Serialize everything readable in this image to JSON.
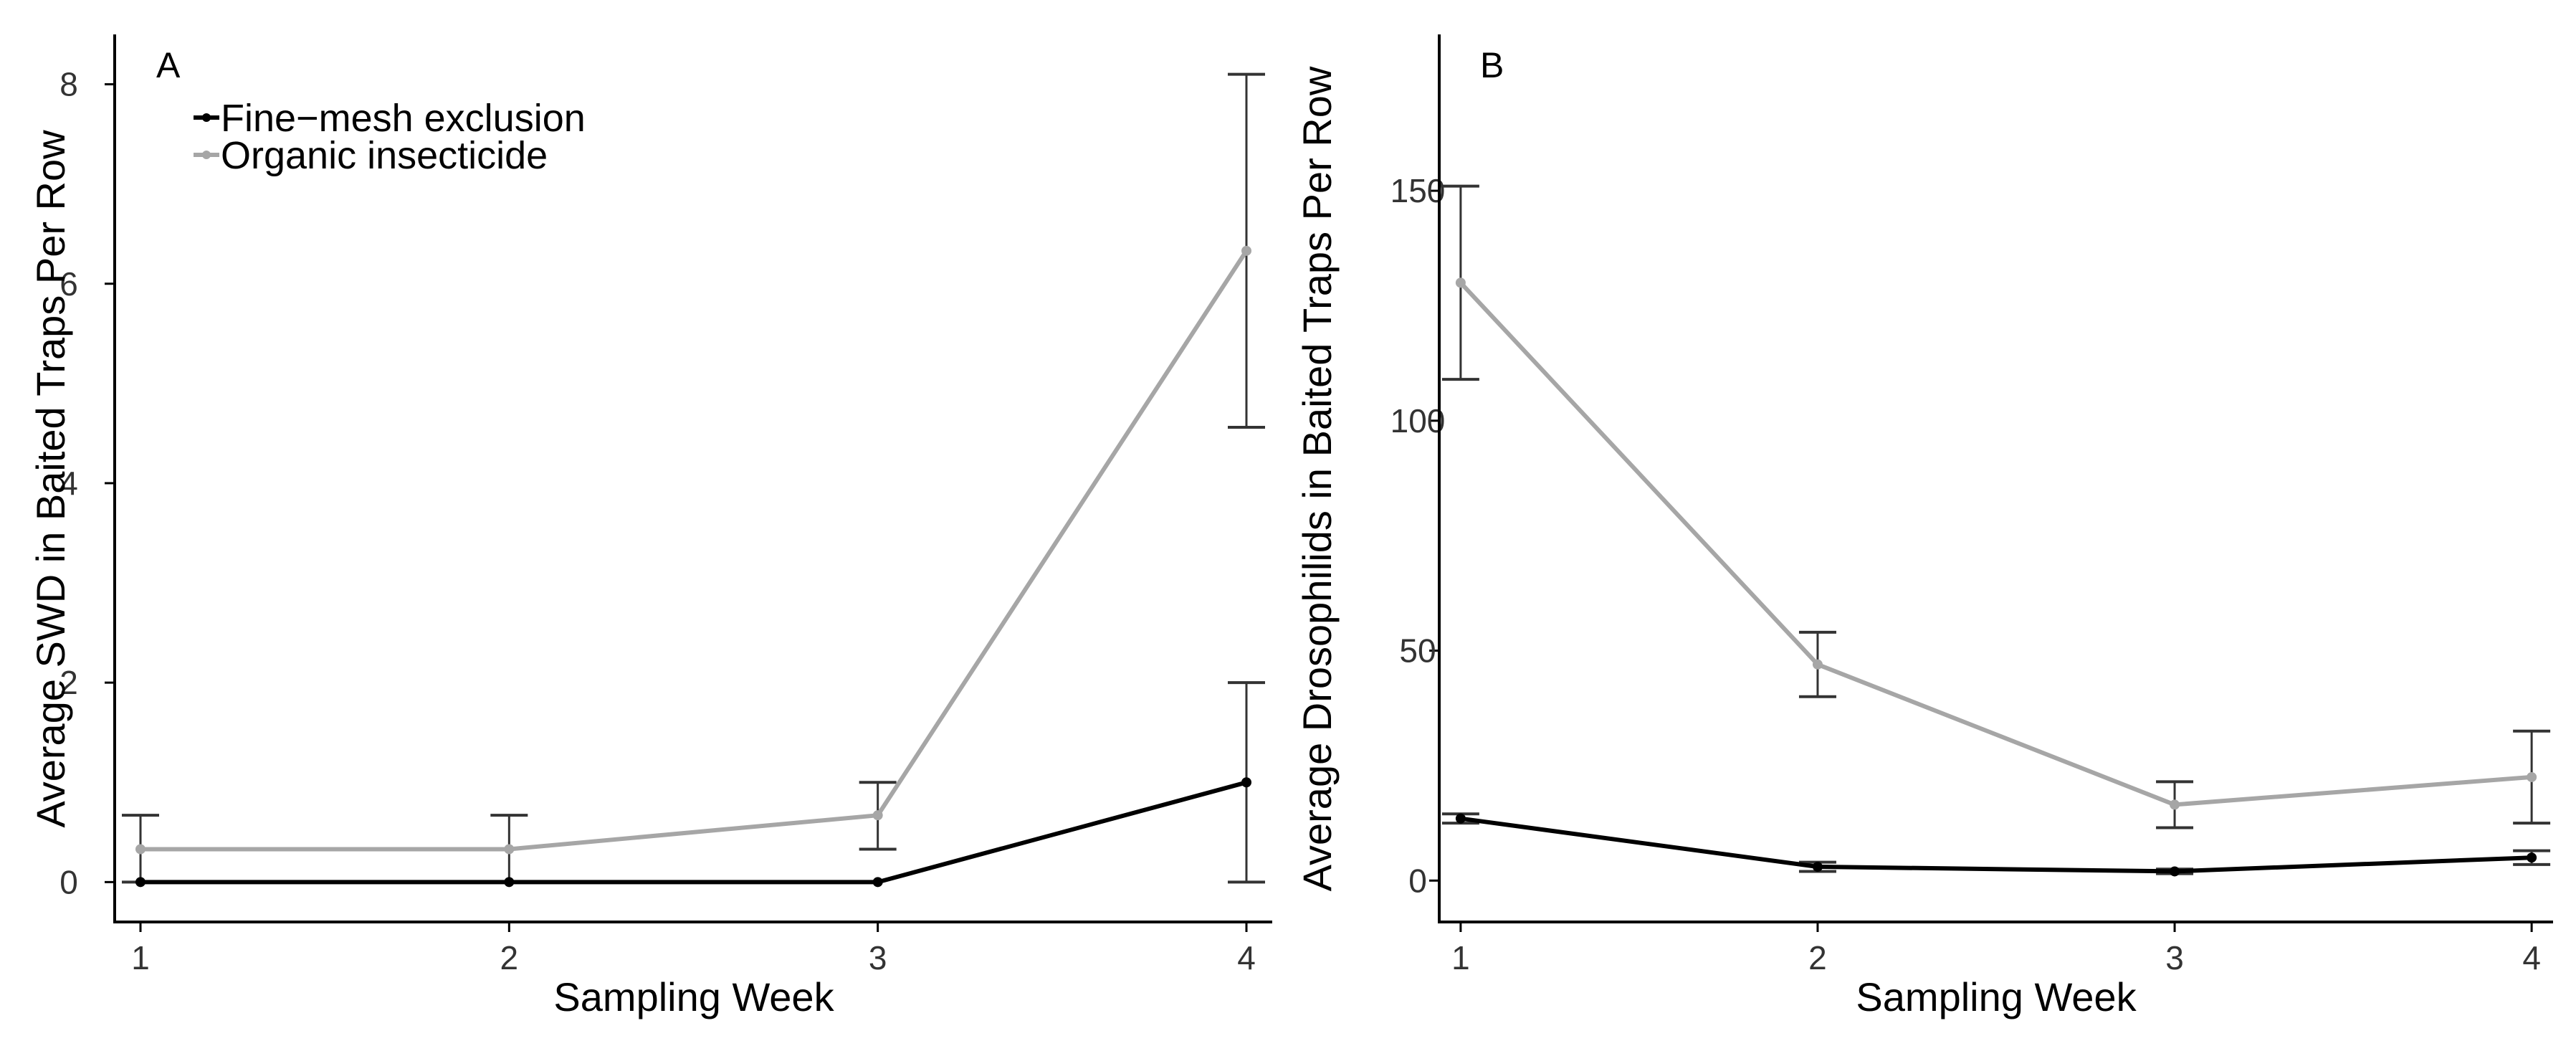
{
  "colors": {
    "fine_mesh": "#000000",
    "organic": "#a6a6a6",
    "error_bar": "#333333"
  },
  "legend": {
    "placement": "top-left",
    "items": [
      {
        "label": "Fine−mesh exclusion",
        "color": "#000000"
      },
      {
        "label": "Organic insecticide",
        "color": "#a6a6a6"
      }
    ]
  },
  "chart_data": [
    {
      "type": "line",
      "panel_label": "A",
      "title": "",
      "xlabel": "Sampling Week",
      "ylabel": "Average SWD in Baited Traps Per Row",
      "x": [
        1,
        2,
        3,
        4
      ],
      "xticks": [
        1,
        2,
        3,
        4
      ],
      "xlim": [
        0.93,
        4.07
      ],
      "yticks": [
        0,
        2,
        4,
        6,
        8
      ],
      "ylim": [
        -0.4,
        8.5
      ],
      "grid": false,
      "legend": "top-left",
      "series": [
        {
          "name": "Fine−mesh exclusion",
          "color": "#000000",
          "values": [
            0,
            0,
            0,
            1.0
          ],
          "err_low": [
            0,
            0,
            0,
            0
          ],
          "err_high": [
            0,
            0,
            0,
            2.0
          ]
        },
        {
          "name": "Organic insecticide",
          "color": "#a6a6a6",
          "values": [
            0.33,
            0.33,
            0.67,
            6.33
          ],
          "err_low": [
            0,
            0,
            0.33,
            4.56
          ],
          "err_high": [
            0.67,
            0.67,
            1.0,
            8.1
          ]
        }
      ]
    },
    {
      "type": "line",
      "panel_label": "B",
      "title": "",
      "xlabel": "Sampling Week",
      "ylabel": "Average Drosophilids in Baited Traps Per Row",
      "x": [
        1,
        2,
        3,
        4
      ],
      "xticks": [
        1,
        2,
        3,
        4
      ],
      "xlim": [
        0.94,
        4.06
      ],
      "yticks": [
        0,
        50,
        100,
        150
      ],
      "ylim": [
        -9,
        184
      ],
      "grid": false,
      "legend": "none",
      "series": [
        {
          "name": "Fine−mesh exclusion",
          "color": "#000000",
          "values": [
            13.5,
            3.0,
            2.0,
            5.0
          ],
          "err_low": [
            12.5,
            2.0,
            1.5,
            3.5
          ],
          "err_high": [
            14.5,
            4.0,
            2.5,
            6.5
          ]
        },
        {
          "name": "Organic insecticide",
          "color": "#a6a6a6",
          "values": [
            130,
            47,
            16.5,
            22.5
          ],
          "err_low": [
            109,
            40,
            11.5,
            12.5
          ],
          "err_high": [
            151,
            54,
            21.5,
            32.5
          ]
        }
      ]
    }
  ]
}
